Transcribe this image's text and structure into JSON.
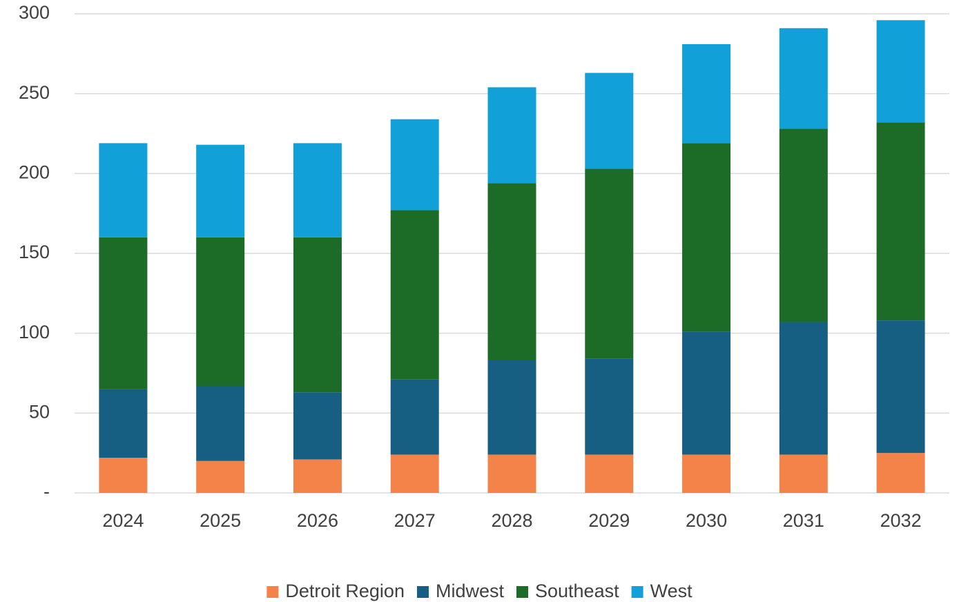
{
  "chart_data": {
    "type": "stacked_bar",
    "categories": [
      "2024",
      "2025",
      "2026",
      "2027",
      "2028",
      "2029",
      "2030",
      "2031",
      "2032"
    ],
    "series": [
      {
        "name": "Detroit Region",
        "color": "#f4834a",
        "values": [
          22,
          20,
          21,
          24,
          24,
          24,
          24,
          24,
          25
        ]
      },
      {
        "name": "Midwest",
        "color": "#165f83",
        "values": [
          43,
          47,
          42,
          47,
          59,
          60,
          77,
          83,
          83
        ]
      },
      {
        "name": "Southeast",
        "color": "#1c6b26",
        "values": [
          95,
          93,
          97,
          106,
          111,
          119,
          118,
          121,
          124
        ]
      },
      {
        "name": "West",
        "color": "#11a0d8",
        "values": [
          59,
          58,
          59,
          57,
          60,
          60,
          62,
          63,
          64
        ]
      }
    ],
    "ylim": [
      0,
      300
    ],
    "yticks": [
      {
        "value": 0,
        "label": "-"
      },
      50,
      100,
      150,
      200,
      250,
      300
    ],
    "grid": true,
    "legend": "bottom"
  }
}
